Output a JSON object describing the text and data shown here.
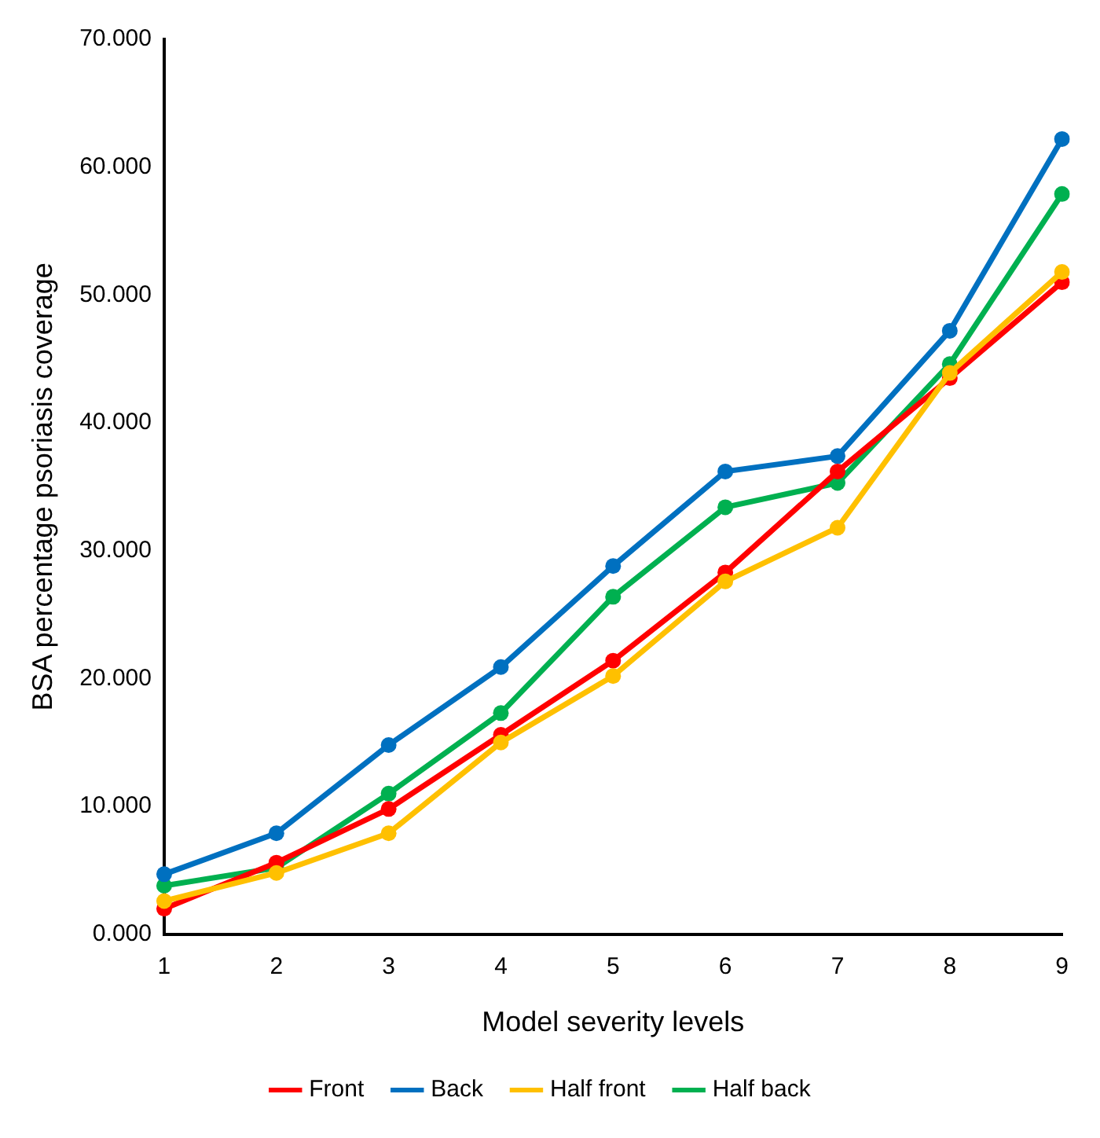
{
  "chart_data": {
    "type": "line",
    "xlabel": "Model severity levels",
    "ylabel": "BSA percentage psoriasis coverage",
    "categories": [
      "1",
      "2",
      "3",
      "4",
      "5",
      "6",
      "7",
      "8",
      "9"
    ],
    "series": [
      {
        "name": "Front",
        "color": "#ff0000",
        "values": [
          2.0,
          5.6,
          9.8,
          15.6,
          21.4,
          28.3,
          36.2,
          43.5,
          51.0
        ]
      },
      {
        "name": "Back",
        "color": "#0070c0",
        "values": [
          4.7,
          7.9,
          14.8,
          20.9,
          28.8,
          36.2,
          37.4,
          47.2,
          62.2
        ]
      },
      {
        "name": "Half front",
        "color": "#ffc000",
        "values": [
          2.6,
          4.8,
          7.9,
          15.0,
          20.2,
          27.6,
          31.8,
          43.9,
          51.8
        ]
      },
      {
        "name": "Half back",
        "color": "#00b050",
        "values": [
          3.8,
          5.2,
          11.0,
          17.3,
          26.4,
          33.4,
          35.3,
          44.6,
          57.9
        ]
      }
    ],
    "ylim": [
      0,
      70
    ],
    "yticks": [
      {
        "value": 0,
        "label": "0.000"
      },
      {
        "value": 10,
        "label": "10.000"
      },
      {
        "value": 20,
        "label": "20.000"
      },
      {
        "value": 30,
        "label": "30.000"
      },
      {
        "value": 40,
        "label": "40.000"
      },
      {
        "value": 50,
        "label": "50.000"
      },
      {
        "value": 60,
        "label": "60.000"
      },
      {
        "value": 70,
        "label": "70.000"
      }
    ],
    "grid": false,
    "legend": "bottom",
    "marker": "circle",
    "line_style": "solid"
  }
}
